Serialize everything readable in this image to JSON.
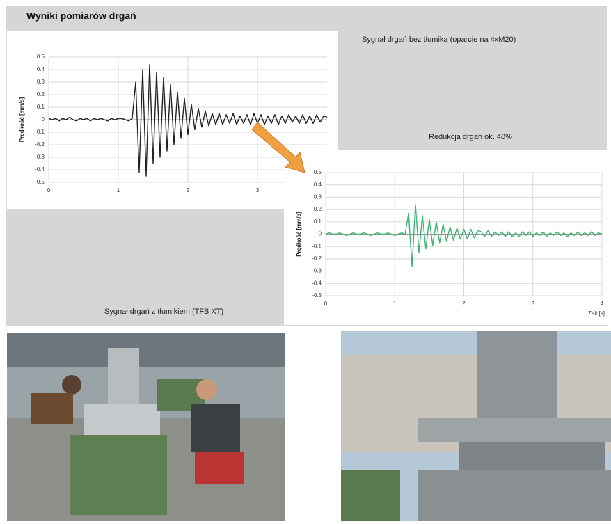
{
  "header": {
    "title": "Wyniki pomiarów drgań"
  },
  "captions": [
    "Sygnał drgań bez tłumika (oparcie na 4xM20)",
    "Redukcja drgań ok. 40%",
    "Sygnał drgań z tłumikiem (TFB XT)"
  ],
  "chart_data": [
    {
      "type": "line",
      "y_label": "Prędkość [mm/s]",
      "grid": true,
      "xlim": [
        0,
        4
      ],
      "xticks": [
        0,
        1,
        2,
        3
      ],
      "ylim": [
        -0.5,
        0.5
      ],
      "yticks": [
        -0.5,
        -0.4,
        -0.3,
        -0.2,
        -0.1,
        0,
        0.1,
        0.2,
        0.3,
        0.4,
        0.5
      ],
      "series": [
        {
          "color": "#222222",
          "x": [
            0,
            0.05,
            0.1,
            0.15,
            0.2,
            0.25,
            0.3,
            0.35,
            0.4,
            0.45,
            0.5,
            0.55,
            0.6,
            0.65,
            0.7,
            0.75,
            0.8,
            0.85,
            0.9,
            0.95,
            1,
            1.05,
            1.1,
            1.15,
            1.2,
            1.25,
            1.3,
            1.35,
            1.4,
            1.45,
            1.5,
            1.55,
            1.6,
            1.65,
            1.7,
            1.75,
            1.8,
            1.85,
            1.9,
            1.95,
            2,
            2.05,
            2.1,
            2.15,
            2.2,
            2.25,
            2.3,
            2.35,
            2.4,
            2.45,
            2.5,
            2.55,
            2.6,
            2.65,
            2.7,
            2.75,
            2.8,
            2.85,
            2.9,
            2.95,
            3,
            3.05,
            3.1,
            3.15,
            3.2,
            3.25,
            3.3,
            3.35,
            3.4,
            3.45,
            3.5,
            3.55,
            3.6,
            3.65,
            3.7,
            3.75,
            3.8,
            3.85,
            3.9,
            3.95,
            4
          ],
          "values": [
            0.01,
            0,
            0.01,
            -0.01,
            0.01,
            0,
            0.02,
            0,
            -0.01,
            0.01,
            0,
            0.01,
            -0.01,
            0.01,
            0,
            0.01,
            0,
            -0.01,
            0.01,
            0,
            0.01,
            0.01,
            0,
            -0.01,
            0.01,
            0.3,
            -0.42,
            0.4,
            -0.45,
            0.44,
            -0.35,
            0.38,
            -0.3,
            0.34,
            -0.25,
            0.28,
            -0.2,
            0.22,
            -0.15,
            0.17,
            -0.12,
            0.12,
            -0.08,
            0.09,
            -0.06,
            0.07,
            -0.05,
            0.05,
            -0.04,
            0.05,
            -0.04,
            0.04,
            -0.03,
            0.05,
            -0.04,
            0.03,
            -0.03,
            0.04,
            -0.04,
            0.05,
            -0.03,
            0.04,
            -0.04,
            0.03,
            -0.03,
            0.04,
            -0.04,
            0.03,
            -0.03,
            0.04,
            -0.02,
            0.03,
            -0.03,
            0.04,
            -0.03,
            0.03,
            -0.03,
            0.04,
            -0.02,
            0.03,
            0.02
          ]
        }
      ]
    },
    {
      "type": "line",
      "y_label": "Prędkość [mm/s]",
      "x_label": "Zeit [s]",
      "grid": true,
      "xlim": [
        0,
        4
      ],
      "xticks": [
        0,
        1,
        2,
        3,
        4
      ],
      "ylim": [
        -0.5,
        0.5
      ],
      "yticks": [
        -0.5,
        -0.4,
        -0.3,
        -0.2,
        -0.1,
        0,
        0.1,
        0.2,
        0.3,
        0.4,
        0.5
      ],
      "series": [
        {
          "color": "#3cb371",
          "x": [
            0,
            0.05,
            0.1,
            0.15,
            0.2,
            0.25,
            0.3,
            0.35,
            0.4,
            0.45,
            0.5,
            0.55,
            0.6,
            0.65,
            0.7,
            0.75,
            0.8,
            0.85,
            0.9,
            0.95,
            1,
            1.05,
            1.1,
            1.15,
            1.2,
            1.25,
            1.3,
            1.35,
            1.4,
            1.45,
            1.5,
            1.55,
            1.6,
            1.65,
            1.7,
            1.75,
            1.8,
            1.85,
            1.9,
            1.95,
            2,
            2.05,
            2.1,
            2.15,
            2.2,
            2.25,
            2.3,
            2.35,
            2.4,
            2.45,
            2.5,
            2.55,
            2.6,
            2.65,
            2.7,
            2.75,
            2.8,
            2.85,
            2.9,
            2.95,
            3,
            3.05,
            3.1,
            3.15,
            3.2,
            3.25,
            3.3,
            3.35,
            3.4,
            3.45,
            3.5,
            3.55,
            3.6,
            3.65,
            3.7,
            3.75,
            3.8,
            3.85,
            3.9,
            3.95,
            4
          ],
          "values": [
            0,
            0.01,
            0,
            0,
            0.01,
            0,
            -0.01,
            0,
            0.01,
            0,
            0,
            0.01,
            0,
            -0.01,
            0,
            0.01,
            0,
            0,
            0.01,
            0,
            -0.01,
            0,
            0.01,
            0,
            0.17,
            -0.26,
            0.24,
            -0.15,
            0.15,
            -0.12,
            0.12,
            -0.09,
            0.1,
            -0.07,
            0.08,
            -0.06,
            0.06,
            -0.05,
            0.05,
            -0.04,
            0.04,
            -0.04,
            0.04,
            -0.03,
            0.03,
            0.02,
            -0.02,
            0.03,
            -0.02,
            0.02,
            -0.01,
            0.02,
            -0.02,
            0.02,
            -0.02,
            0.01,
            -0.02,
            0.02,
            -0.01,
            0.02,
            -0.02,
            0.01,
            -0.01,
            0.02,
            -0.02,
            0.01,
            -0.01,
            0.02,
            -0.01,
            0.01,
            -0.02,
            0.01,
            -0.01,
            0.02,
            -0.01,
            0.01,
            -0.01,
            0.02,
            -0.01,
            0.01,
            0
          ]
        }
      ]
    }
  ]
}
